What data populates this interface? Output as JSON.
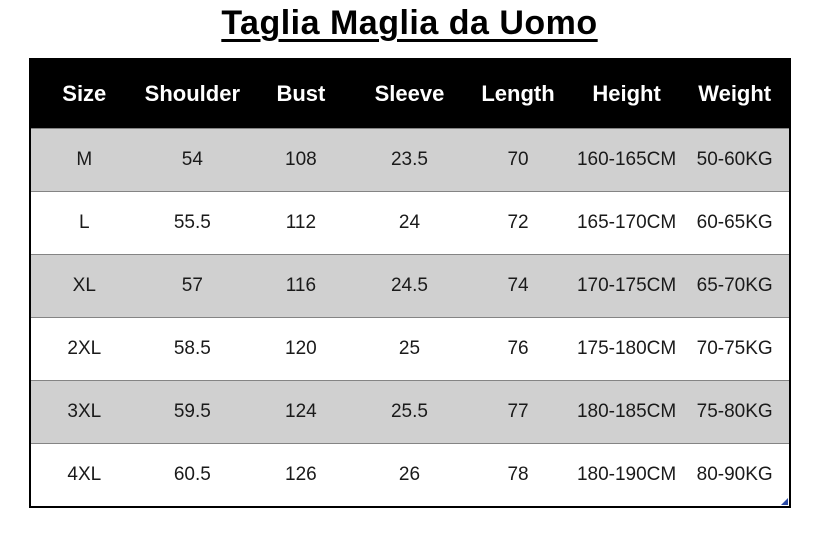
{
  "chart_data": {
    "type": "table",
    "title": "Taglia Maglia da Uomo",
    "columns": [
      "Size",
      "Shoulder",
      "Bust",
      "Sleeve",
      "Length",
      "Height",
      "Weight"
    ],
    "rows": [
      [
        "M",
        "54",
        "108",
        "23.5",
        "70",
        "160-165CM",
        "50-60KG"
      ],
      [
        "L",
        "55.5",
        "112",
        "24",
        "72",
        "165-170CM",
        "60-65KG"
      ],
      [
        "XL",
        "57",
        "116",
        "24.5",
        "74",
        "170-175CM",
        "65-70KG"
      ],
      [
        "2XL",
        "58.5",
        "120",
        "25",
        "76",
        "175-180CM",
        "70-75KG"
      ],
      [
        "3XL",
        "59.5",
        "124",
        "25.5",
        "77",
        "180-185CM",
        "75-80KG"
      ],
      [
        "4XL",
        "60.5",
        "126",
        "26",
        "78",
        "180-190CM",
        "80-90KG"
      ]
    ],
    "layout": {
      "grid": "horizontal row separators only, black outer border",
      "header_style": "black background, white bold text",
      "row_striping": "odd data rows gray, even data rows white"
    }
  },
  "colors": {
    "header_bg": "#000000",
    "header_text": "#ffffff",
    "row_bg": "#ffffff",
    "row_alt_bg": "#d0d0d0",
    "row_divider": "#848484",
    "border": "#000000",
    "handle": "#2b4aa5"
  }
}
